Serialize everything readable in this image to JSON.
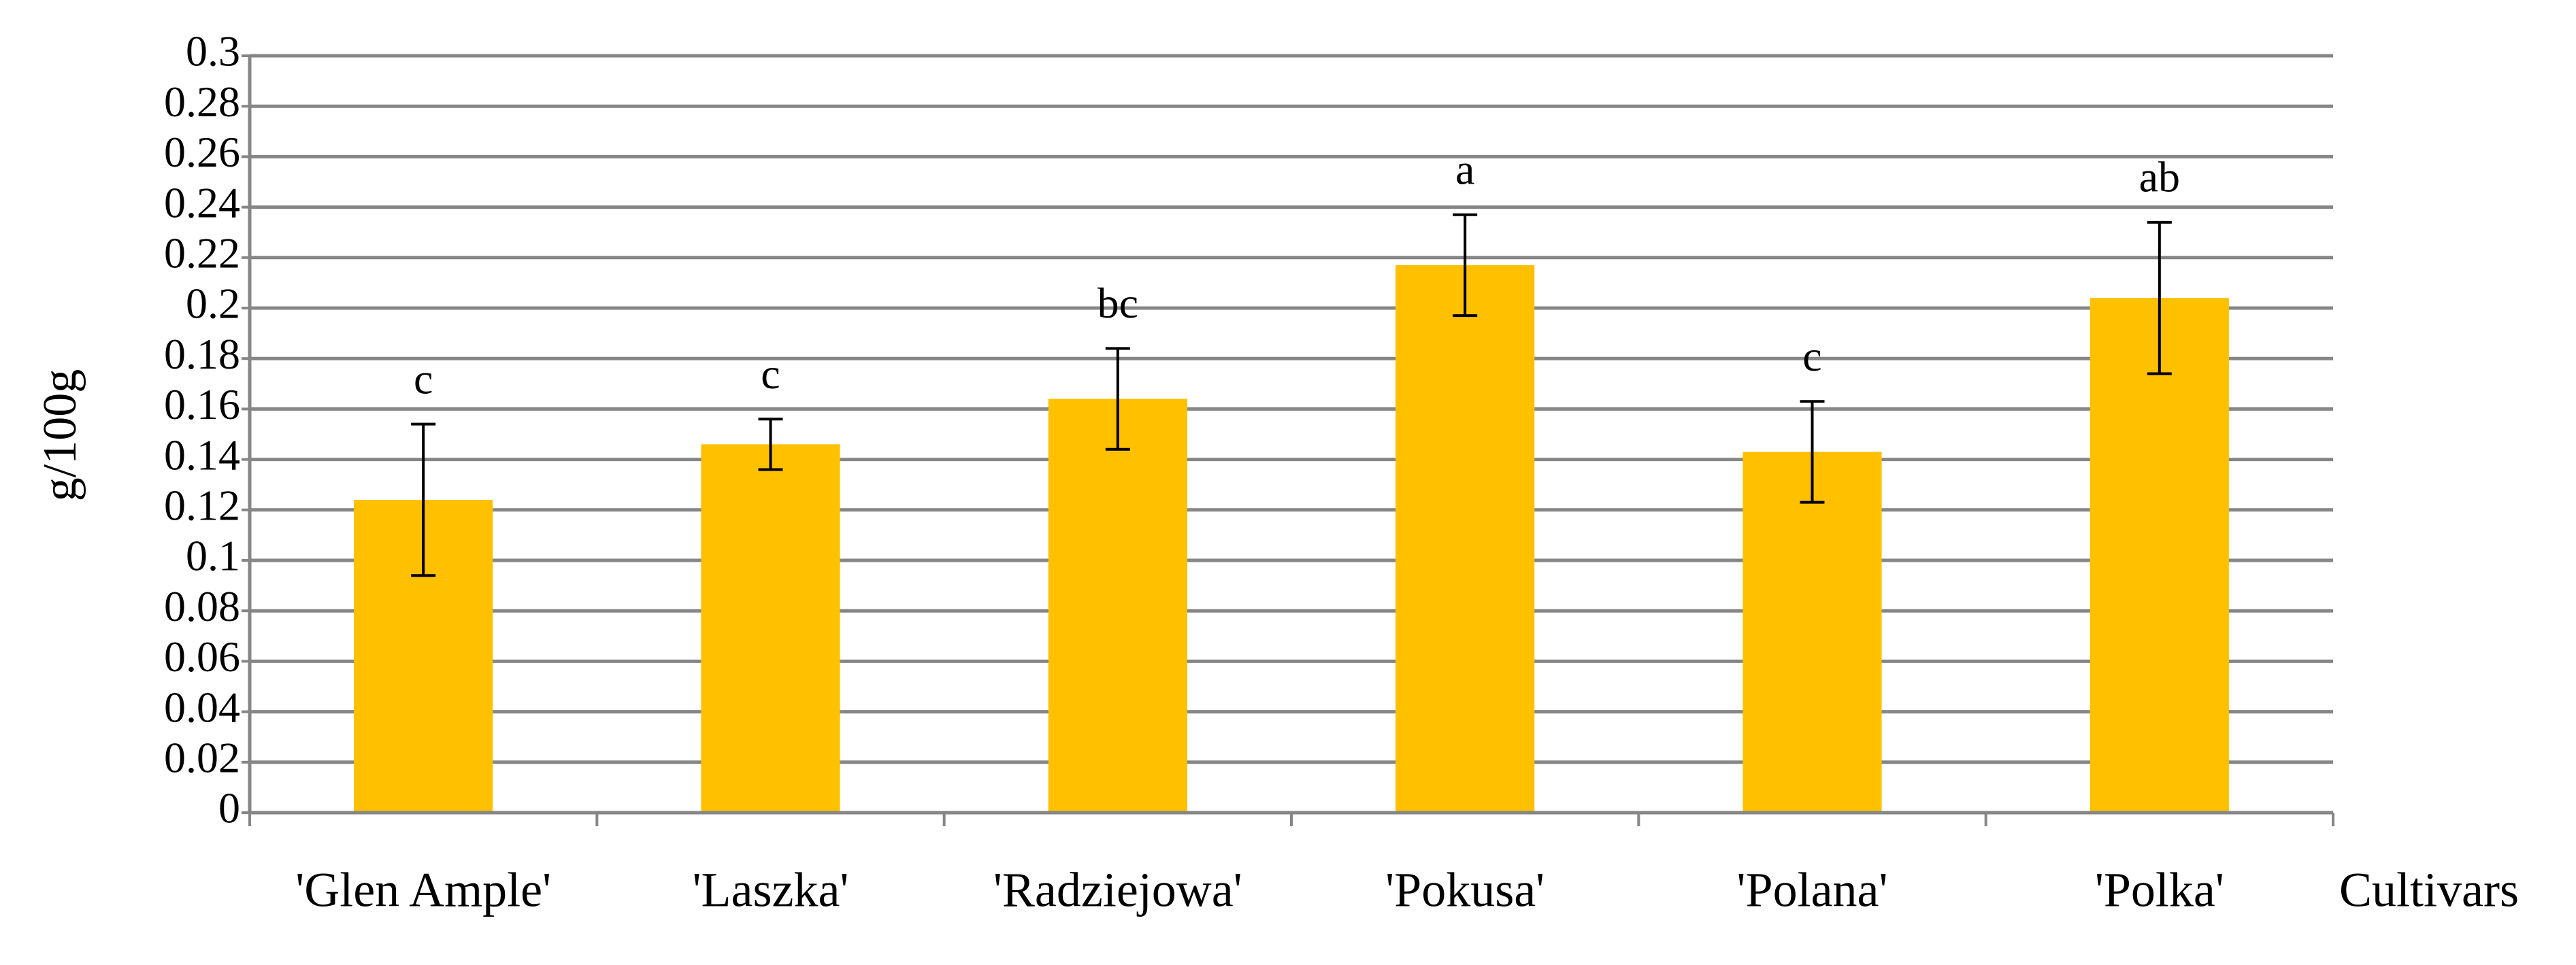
{
  "chart_data": {
    "type": "bar",
    "y_label": "g/100g",
    "x_label": "Cultivars",
    "categories": [
      "'Glen Ample'",
      "'Laszka'",
      "'Radziejowa'",
      "'Pokusa'",
      "'Polana'",
      "'Polka'"
    ],
    "values": [
      0.124,
      0.146,
      0.164,
      0.217,
      0.143,
      0.204
    ],
    "errors": [
      0.03,
      0.01,
      0.02,
      0.02,
      0.02,
      0.03
    ],
    "significance_letters": [
      "c",
      "c",
      "bc",
      "a",
      "c",
      "ab"
    ],
    "color": "#ffc000",
    "ylim": [
      0,
      0.3
    ],
    "yticks": [
      0,
      0.02,
      0.04,
      0.06,
      0.08,
      0.1,
      0.12,
      0.14,
      0.16,
      0.18,
      0.2,
      0.22,
      0.24,
      0.26,
      0.28,
      0.3
    ],
    "grid": true
  }
}
